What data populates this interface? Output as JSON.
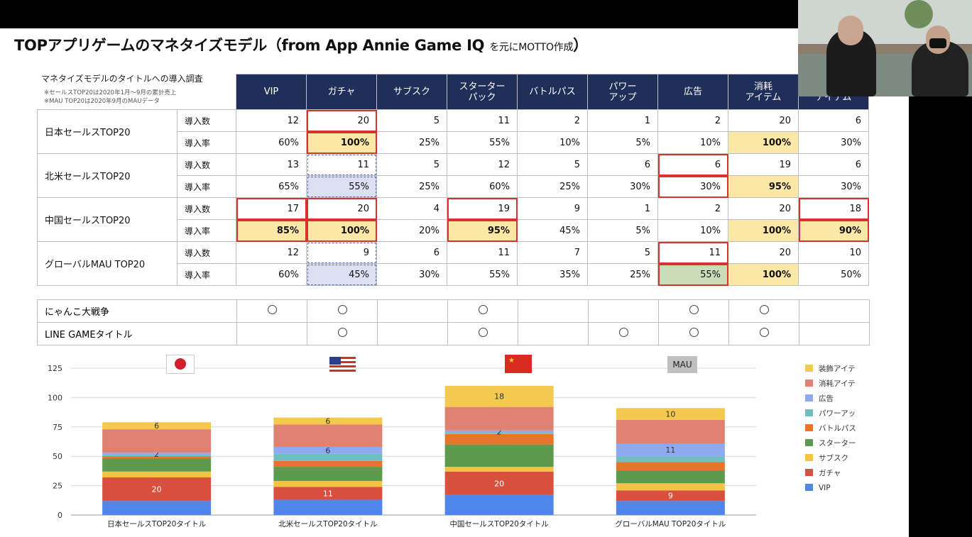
{
  "title": {
    "main": "TOPアプリゲームのマネタイズモデル（from App Annie Game IQ",
    "sub": "を元にMOTTO作成",
    "close": "）"
  },
  "survey": {
    "heading": "マネタイズモデルのタイトルへの導入調査",
    "note1": "※セールスTOP20は2020年1月〜9月の累計売上",
    "note2": "※MAU TOP20は2020年9月のMAUデータ"
  },
  "columns": [
    "VIP",
    "ガチャ",
    "サブスク",
    "スターター\nパック",
    "バトルパス",
    "パワー\nアップ",
    "広告",
    "消耗\nアイテム",
    "装飾\nアイテム"
  ],
  "metrics": {
    "count": "導入数",
    "rate": "導入率"
  },
  "regions": [
    {
      "name": "日本セールスTOP20",
      "counts": [
        "12",
        "20",
        "5",
        "11",
        "2",
        "1",
        "2",
        "20",
        "6"
      ],
      "rates": [
        "60%",
        "100%",
        "25%",
        "55%",
        "10%",
        "5%",
        "10%",
        "100%",
        "30%"
      ]
    },
    {
      "name": "北米セールスTOP20",
      "counts": [
        "13",
        "11",
        "5",
        "12",
        "5",
        "6",
        "6",
        "19",
        "6"
      ],
      "rates": [
        "65%",
        "55%",
        "25%",
        "60%",
        "25%",
        "30%",
        "30%",
        "95%",
        "30%"
      ]
    },
    {
      "name": "中国セールスTOP20",
      "counts": [
        "17",
        "20",
        "4",
        "19",
        "9",
        "1",
        "2",
        "20",
        "18"
      ],
      "rates": [
        "85%",
        "100%",
        "20%",
        "95%",
        "45%",
        "5%",
        "10%",
        "100%",
        "90%"
      ]
    },
    {
      "name": "グローバルMAU TOP20",
      "counts": [
        "12",
        "9",
        "6",
        "11",
        "7",
        "5",
        "11",
        "20",
        "10"
      ],
      "rates": [
        "60%",
        "45%",
        "30%",
        "55%",
        "35%",
        "25%",
        "55%",
        "100%",
        "50%"
      ]
    }
  ],
  "titles": [
    {
      "name": "にゃんこ大戦争",
      "marks": [
        1,
        1,
        0,
        1,
        0,
        0,
        1,
        1,
        0
      ]
    },
    {
      "name": "LINE GAMEタイトル",
      "marks": [
        0,
        1,
        0,
        1,
        0,
        1,
        1,
        1,
        0
      ]
    }
  ],
  "flags": {
    "mau_label": "MAU"
  },
  "chart_data": {
    "type": "bar",
    "stacked": true,
    "categories": [
      "日本セールスTOP20タイトル",
      "北米セールスTOP20タイトル",
      "中国セールスTOP20タイトル",
      "グローバルMAU TOP20タイトル"
    ],
    "yticks": [
      "0",
      "25",
      "50",
      "75",
      "100",
      "125"
    ],
    "ylim": [
      0,
      125
    ],
    "legend_position": "right",
    "series": [
      {
        "name": "VIP",
        "color": "#4f86e8",
        "values": [
          12,
          13,
          17,
          12
        ]
      },
      {
        "name": "ガチャ",
        "color": "#d9503f",
        "values": [
          20,
          11,
          20,
          9
        ]
      },
      {
        "name": "サブスク",
        "color": "#f3c343",
        "values": [
          5,
          5,
          4,
          6
        ]
      },
      {
        "name": "スターターパック",
        "color": "#5b9a4f",
        "values": [
          11,
          12,
          19,
          11
        ]
      },
      {
        "name": "バトルパス",
        "color": "#e8732a",
        "values": [
          2,
          5,
          9,
          7
        ]
      },
      {
        "name": "パワーアップ",
        "color": "#6fbfc1",
        "values": [
          1,
          6,
          1,
          5
        ]
      },
      {
        "name": "広告",
        "color": "#8fa9ee",
        "values": [
          2,
          6,
          2,
          11
        ]
      },
      {
        "name": "消耗アイテム",
        "color": "#df8173",
        "values": [
          20,
          19,
          20,
          20
        ]
      },
      {
        "name": "装飾アイテム",
        "color": "#f3c94e",
        "values": [
          6,
          6,
          18,
          10
        ]
      }
    ],
    "data_labels": {
      "VIP": false,
      "ガチャ": true,
      "広告": true,
      "装飾アイテム": true
    }
  }
}
